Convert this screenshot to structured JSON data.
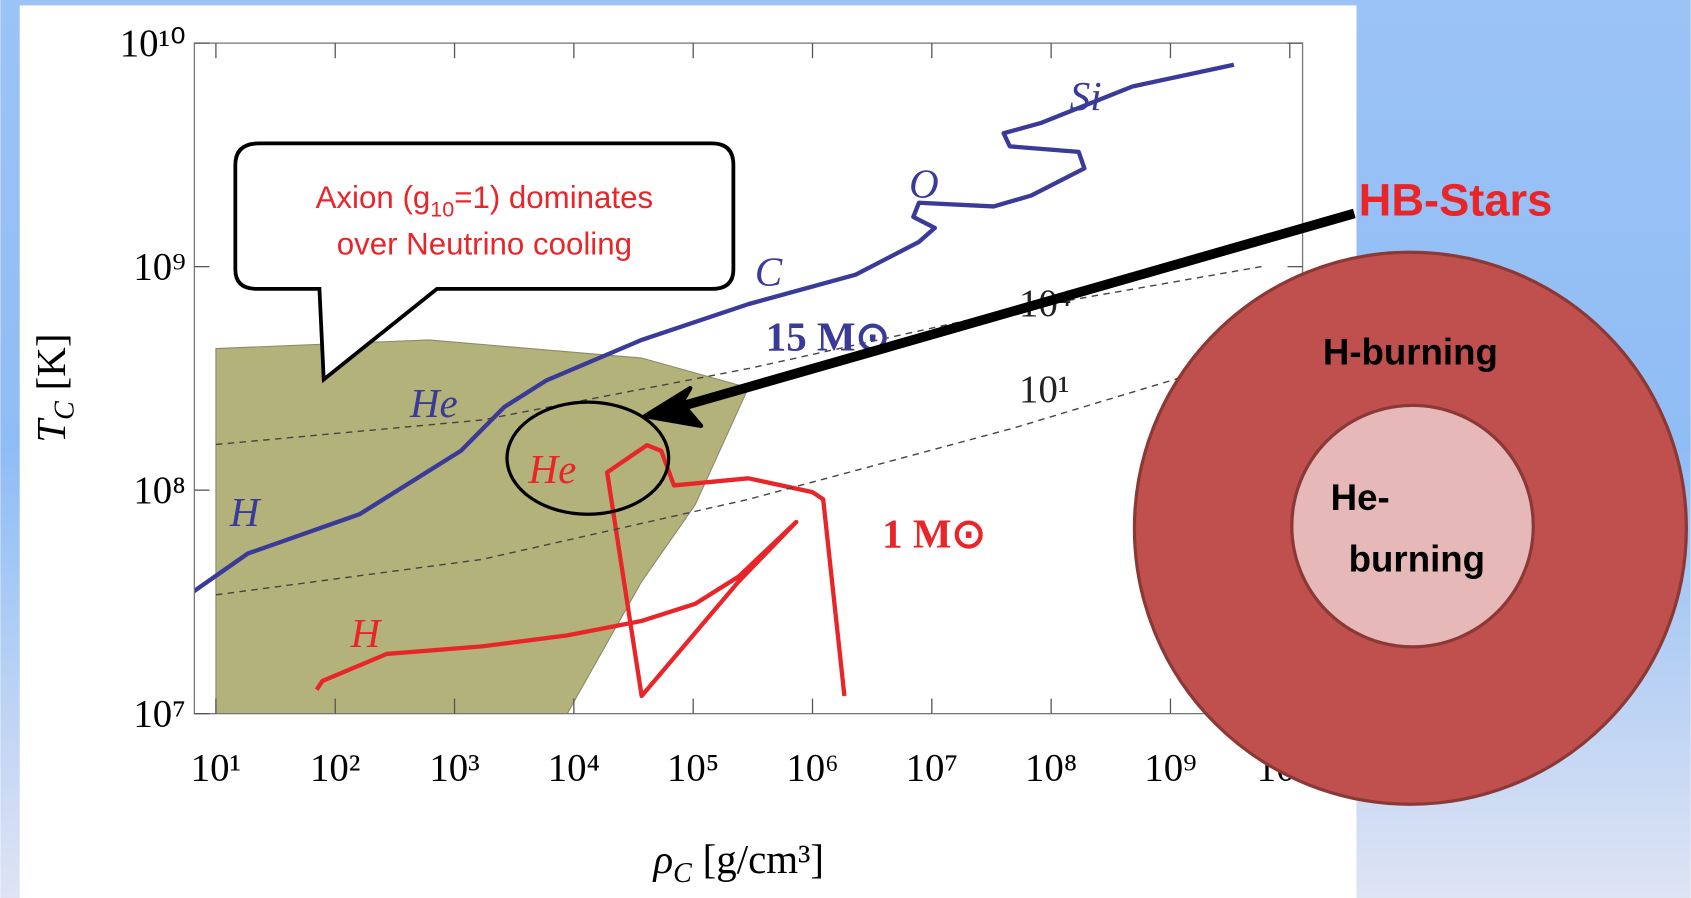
{
  "chart_data": {
    "type": "line",
    "xlabel": {
      "symbol": "ρ",
      "subscript": "C",
      "unit": "[g/cm³]"
    },
    "ylabel": {
      "symbol": "T",
      "subscript": "C",
      "unit": "[K]"
    },
    "log_x": true,
    "log_y": true,
    "xlim": [
      6.6,
      12800000000.0
    ],
    "ylim": [
      10000000.0,
      10000000000.0
    ],
    "xticks": [
      {
        "value": 10,
        "label": "10¹"
      },
      {
        "value": 100,
        "label": "10²"
      },
      {
        "value": 1000,
        "label": "10³"
      },
      {
        "value": 10000,
        "label": "10⁴"
      },
      {
        "value": 100000,
        "label": "10⁵"
      },
      {
        "value": 1000000,
        "label": "10⁶"
      },
      {
        "value": 10000000,
        "label": "10⁷"
      },
      {
        "value": 100000000,
        "label": "10⁸"
      },
      {
        "value": 1000000000,
        "label": "10⁹"
      },
      {
        "value": 10000000000,
        "label": "10¹⁰"
      }
    ],
    "yticks": [
      {
        "value": 10000000,
        "label": "10⁷"
      },
      {
        "value": 100000000,
        "label": "10⁸"
      },
      {
        "value": 1000000000,
        "label": "10⁹"
      },
      {
        "value": 10000000000,
        "label": "10¹⁰"
      }
    ],
    "shaded_region": {
      "color": "#b3b27a",
      "x": [
        10,
        610,
        37000,
        290000,
        104000,
        37000,
        8800,
        10
      ],
      "y": [
        430000000.0,
        470000000.0,
        390000000.0,
        287000000.0,
        86000000.0,
        39000000.0,
        10000000.0,
        10000000.0
      ]
    },
    "series": [
      {
        "name": "15 M⊙",
        "color": "#3a3a98",
        "style": "solid",
        "x": [
          6.4,
          18.5,
          160,
          1130,
          2600,
          5900,
          37000,
          290000,
          2300000,
          7800000,
          10600000,
          7000000,
          7800000,
          33000000,
          68000000,
          190000000,
          170000000,
          45000000,
          40000000,
          83000000,
          480000000,
          3400000000
        ],
        "values": [
          35000000.0,
          52000000.0,
          78000000.0,
          150000000.0,
          235000000.0,
          310000000.0,
          470000000.0,
          680000000.0,
          920000000.0,
          1290000000.0,
          1490000000.0,
          1670000000.0,
          1930000000.0,
          1860000000.0,
          2080000000.0,
          2750000000.0,
          3260000000.0,
          3450000000.0,
          3950000000.0,
          4400000000.0,
          6400000000.0,
          8000000000.0
        ]
      },
      {
        "name": "1 M⊙",
        "color": "#e8262a",
        "style": "solid",
        "x": [
          70,
          78,
          270,
          1700,
          8800,
          37000,
          104000,
          240000,
          730000,
          240000,
          37000,
          19000,
          41000,
          54000,
          69000,
          290000,
          1000000,
          1230000,
          1850000
        ],
        "values": [
          12800000.0,
          14000000.0,
          18500000.0,
          20000000.0,
          22400000.0,
          26000000.0,
          31000000.0,
          41000000.0,
          72000000.0,
          39000000.0,
          12000000.0,
          120000000.0,
          159000000.0,
          150000000.0,
          105000000.0,
          113000000.0,
          98000000.0,
          91000000.0,
          12000000.0
        ]
      },
      {
        "name": "10⁴",
        "color": "#444444",
        "style": "dashed",
        "x": [
          10,
          1700,
          290000,
          49000000,
          5800000000
        ],
        "values": [
          160000000.0,
          206000000.0,
          350000000.0,
          640000000.0,
          1000000000.0
        ]
      },
      {
        "name": "10¹",
        "color": "#444444",
        "style": "dashed",
        "x": [
          10,
          1700,
          290000,
          49000000,
          5800000000
        ],
        "values": [
          34000000.0,
          49000000.0,
          91000000.0,
          190000000.0,
          410000000.0
        ]
      }
    ],
    "annotations": [
      {
        "text": "H",
        "color": "#3a3a98"
      },
      {
        "text": "He",
        "color": "#3a3a98"
      },
      {
        "text": "C",
        "color": "#3a3a98"
      },
      {
        "text": "O",
        "color": "#3a3a98"
      },
      {
        "text": "Si",
        "color": "#3a3a98"
      },
      {
        "text": "He",
        "color": "#e8262a"
      },
      {
        "text": "H",
        "color": "#e8262a"
      }
    ],
    "callout": {
      "line1": [
        "Axion (g",
        "10",
        "=1) dominates"
      ],
      "line2": "over Neutrino cooling"
    },
    "hb_label": "HB-Stars",
    "star": {
      "outer": "H-burning",
      "inner": [
        "He-",
        "burning"
      ]
    }
  }
}
